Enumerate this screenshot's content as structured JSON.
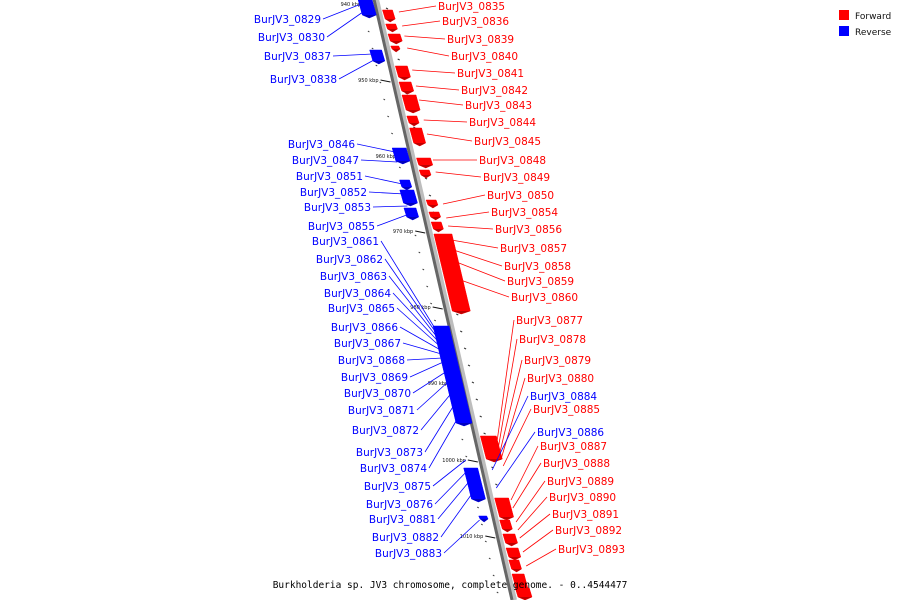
{
  "title": "Burkholderia sp. JV3 chromosome, complete genome. - 0..4544477",
  "legend": [
    {
      "label": "Forward",
      "color": "#ff0000"
    },
    {
      "label": "Reverse",
      "color": "#0000ff"
    }
  ],
  "ticks": [
    "940 kbp",
    "950 kbp",
    "960 kbp",
    "970 kbp",
    "980 kbp",
    "990 kbp",
    "1000 kbp",
    "1010 kbp"
  ],
  "forward_labels": [
    "BurJV3_0835",
    "BurJV3_0836",
    "BurJV3_0839",
    "BurJV3_0840",
    "BurJV3_0841",
    "BurJV3_0842",
    "BurJV3_0843",
    "BurJV3_0844",
    "BurJV3_0845",
    "BurJV3_0848",
    "BurJV3_0849",
    "BurJV3_0850",
    "BurJV3_0854",
    "BurJV3_0856",
    "BurJV3_0857",
    "BurJV3_0858",
    "BurJV3_0859",
    "BurJV3_0860",
    "BurJV3_0877",
    "BurJV3_0878",
    "BurJV3_0879",
    "BurJV3_0880",
    "BurJV3_0885",
    "BurJV3_0887",
    "BurJV3_0888",
    "BurJV3_0889",
    "BurJV3_0890",
    "BurJV3_0891",
    "BurJV3_0892",
    "BurJV3_0893"
  ],
  "reverse_labels_left": [
    "BurJV3_0829",
    "BurJV3_0830",
    "BurJV3_0837",
    "BurJV3_0838",
    "BurJV3_0846",
    "BurJV3_0847",
    "BurJV3_0851",
    "BurJV3_0852",
    "BurJV3_0853",
    "BurJV3_0855",
    "BurJV3_0861",
    "BurJV3_0862",
    "BurJV3_0863",
    "BurJV3_0864",
    "BurJV3_0865",
    "BurJV3_0866",
    "BurJV3_0867",
    "BurJV3_0868",
    "BurJV3_0869",
    "BurJV3_0870",
    "BurJV3_0871",
    "BurJV3_0872",
    "BurJV3_0873",
    "BurJV3_0874",
    "BurJV3_0875",
    "BurJV3_0876",
    "BurJV3_0881",
    "BurJV3_0882",
    "BurJV3_0883"
  ],
  "reverse_labels_right": [
    "BurJV3_0884",
    "BurJV3_0886"
  ]
}
